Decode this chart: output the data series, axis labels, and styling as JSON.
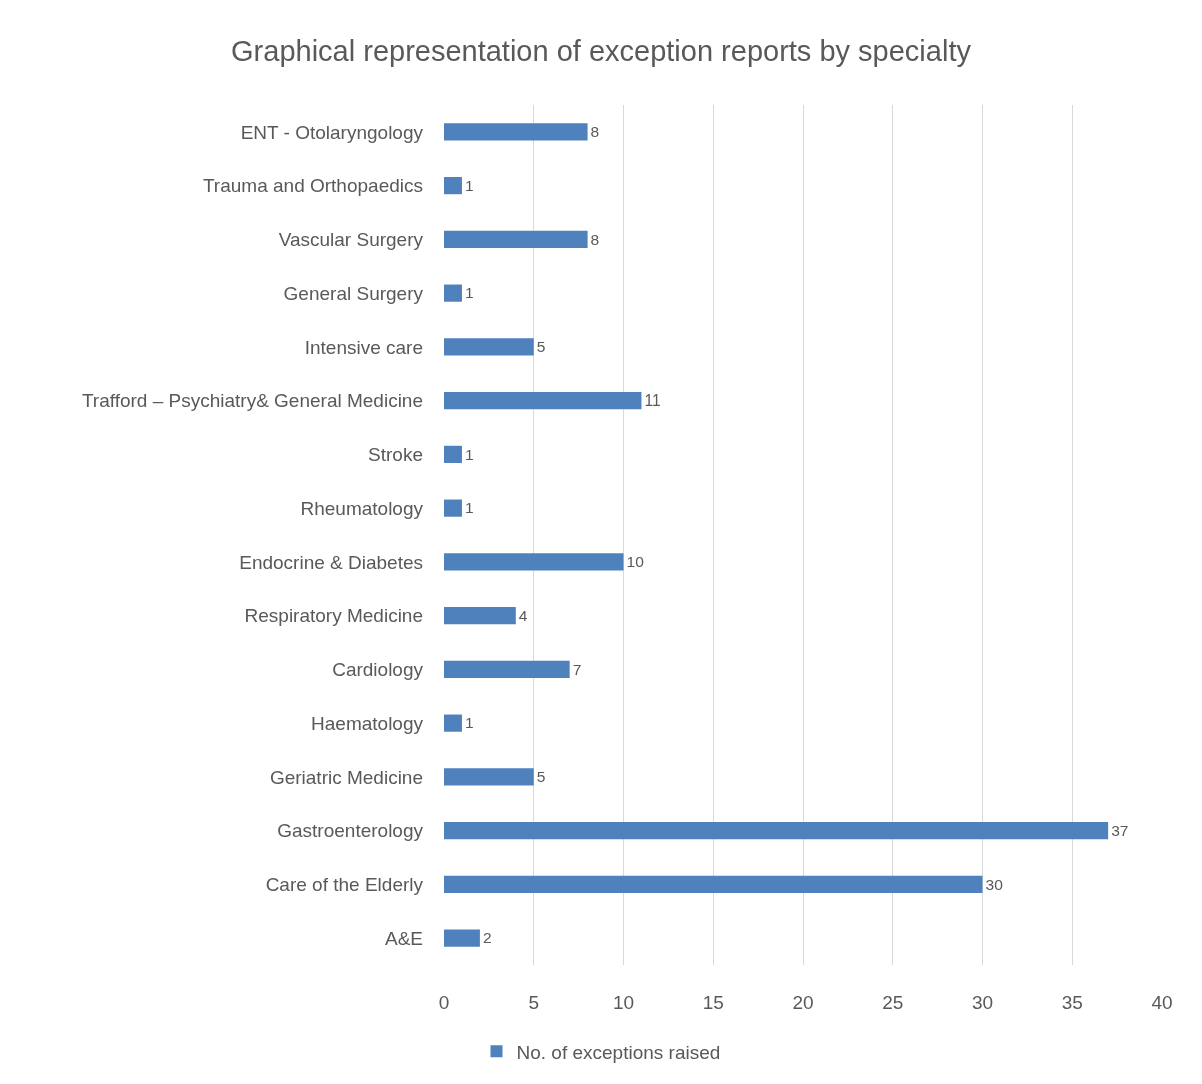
{
  "chart_data": {
    "type": "bar",
    "orientation": "horizontal",
    "title": "Graphical representation of exception reports by specialty",
    "categories": [
      "ENT - Otolaryngology",
      "Trauma and Orthopaedics",
      "Vascular Surgery",
      "General Surgery",
      "Intensive care",
      "Trafford – Psychiatry& General Medicine",
      "Stroke",
      "Rheumatology",
      "Endocrine & Diabetes",
      "Respiratory Medicine",
      "Cardiology",
      "Haematology",
      "Geriatric Medicine",
      "Gastroenterology",
      "Care of the Elderly",
      "A&E"
    ],
    "series": [
      {
        "name": "No. of exceptions raised",
        "color": "#4f81bd",
        "values": [
          8,
          1,
          8,
          1,
          5,
          11,
          1,
          1,
          10,
          4,
          7,
          1,
          5,
          37,
          30,
          2
        ]
      }
    ],
    "xlim": [
      0,
      40
    ],
    "xticks": [
      0,
      5,
      10,
      15,
      20,
      25,
      30,
      35,
      40
    ],
    "grid": "x",
    "legend": "bottom",
    "data_labels": true
  }
}
